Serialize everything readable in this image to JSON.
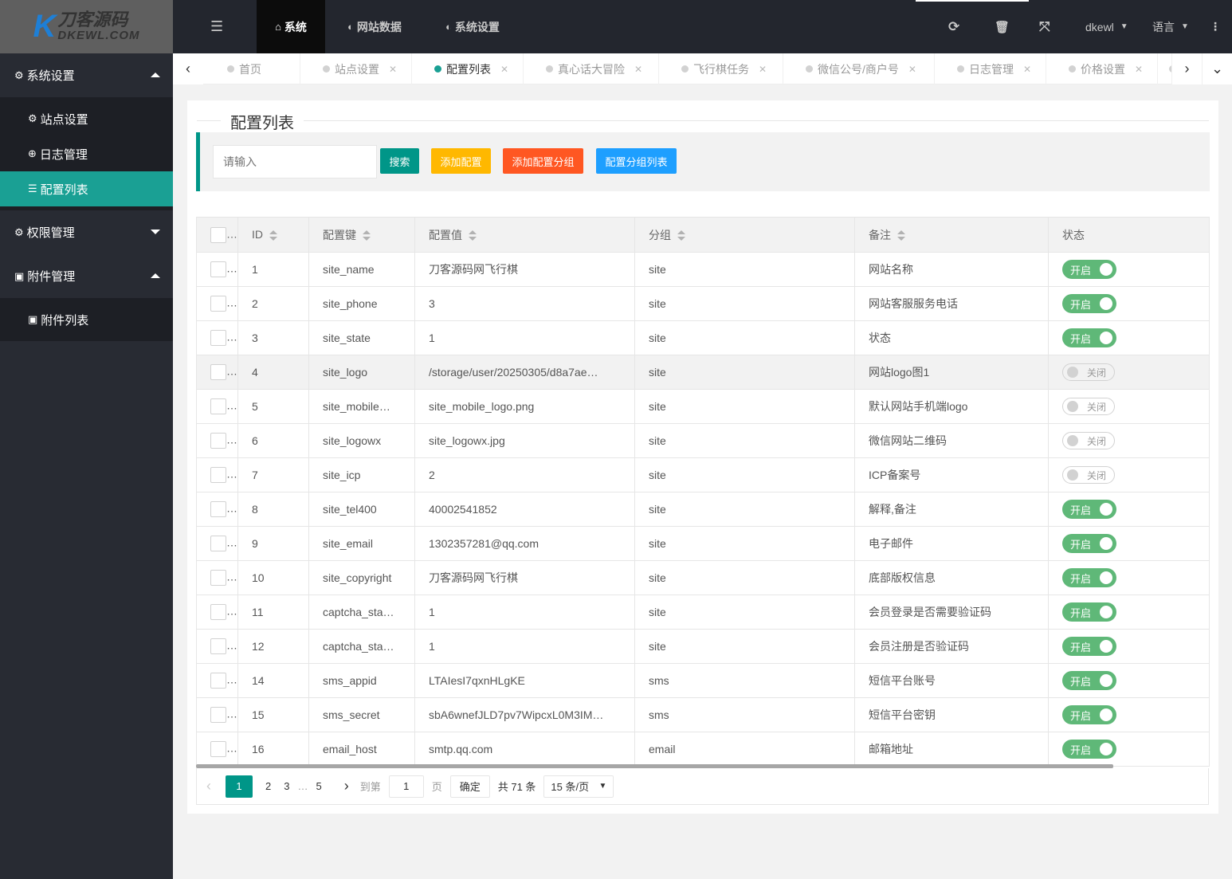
{
  "logo": {
    "text_cn": "刀客源码",
    "text_en": "DKEWL.COM"
  },
  "header": {
    "menu": [
      {
        "label": "系统",
        "icon": "home-icon"
      },
      {
        "label": "网站数据",
        "icon": "circle-half-icon"
      },
      {
        "label": "系统设置",
        "icon": "circle-half-icon"
      }
    ],
    "user": "dkewl",
    "language": "语言"
  },
  "sidebar": {
    "groups": [
      {
        "label": "系统设置",
        "expanded": true,
        "items": [
          {
            "label": "站点设置"
          },
          {
            "label": "日志管理"
          },
          {
            "label": "配置列表",
            "active": true
          }
        ]
      },
      {
        "label": "权限管理",
        "expanded": false,
        "items": []
      },
      {
        "label": "附件管理",
        "expanded": true,
        "items": [
          {
            "label": "附件列表"
          }
        ]
      }
    ]
  },
  "tabs": [
    {
      "label": "首页"
    },
    {
      "label": "站点设置"
    },
    {
      "label": "配置列表",
      "active": true
    },
    {
      "label": "真心话大冒险"
    },
    {
      "label": "飞行棋任务"
    },
    {
      "label": "微信公号/商户号"
    },
    {
      "label": "日志管理"
    },
    {
      "label": "价格设置"
    }
  ],
  "page": {
    "title": "配置列表",
    "search_placeholder": "请输入",
    "buttons": {
      "search": "搜索",
      "add": "添加配置",
      "add_group": "添加配置分组",
      "group_list": "配置分组列表"
    }
  },
  "colors": {
    "accent": "#009688",
    "active_menu": "#1aa094",
    "warn": "#ffb800",
    "danger": "#ff5722",
    "normal": "#1e9fff",
    "switch_on": "#5fb878"
  },
  "table": {
    "columns": [
      "ID",
      "配置键",
      "配置值",
      "分组",
      "备注",
      "状态"
    ],
    "rows": [
      [
        "1",
        "site_name",
        "刀客源码网飞行棋",
        "site",
        "网站名称",
        "开启"
      ],
      [
        "2",
        "site_phone",
        "3",
        "site",
        "网站客服服务电话",
        "开启"
      ],
      [
        "3",
        "site_state",
        "1",
        "site",
        "状态",
        "开启"
      ],
      [
        "4",
        "site_logo",
        "/storage/user/20250305/d8a7ae…",
        "site",
        "网站logo图1",
        "关闭"
      ],
      [
        "5",
        "site_mobile…",
        "site_mobile_logo.png",
        "site",
        "默认网站手机端logo",
        "关闭"
      ],
      [
        "6",
        "site_logowx",
        "site_logowx.jpg",
        "site",
        "微信网站二维码",
        "关闭"
      ],
      [
        "7",
        "site_icp",
        "2",
        "site",
        "ICP备案号",
        "关闭"
      ],
      [
        "8",
        "site_tel400",
        "40002541852",
        "site",
        "解释,备注",
        "开启"
      ],
      [
        "9",
        "site_email",
        "1302357281@qq.com",
        "site",
        "电子邮件",
        "开启"
      ],
      [
        "10",
        "site_copyright",
        "刀客源码网飞行棋",
        "site",
        "底部版权信息",
        "开启"
      ],
      [
        "11",
        "captcha_sta…",
        "1",
        "site",
        "会员登录是否需要验证码",
        "开启"
      ],
      [
        "12",
        "captcha_sta…",
        "1",
        "site",
        "会员注册是否验证码",
        "开启"
      ],
      [
        "14",
        "sms_appid",
        "LTAIesI7qxnHLgKE",
        "sms",
        "短信平台账号",
        "开启"
      ],
      [
        "15",
        "sms_secret",
        "sbA6wnefJLD7pv7WipcxL0M3IM…",
        "sms",
        "短信平台密钥",
        "开启"
      ],
      [
        "16",
        "email_host",
        "smtp.qq.com",
        "email",
        "邮箱地址",
        "开启"
      ]
    ]
  },
  "pager": {
    "pages": [
      "1",
      "2",
      "3",
      "…",
      "5"
    ],
    "current": "1",
    "goto": "到第",
    "goto_value": "1",
    "page_unit": "页",
    "confirm": "确定",
    "total": "共 71 条",
    "per_page": "15 条/页"
  }
}
